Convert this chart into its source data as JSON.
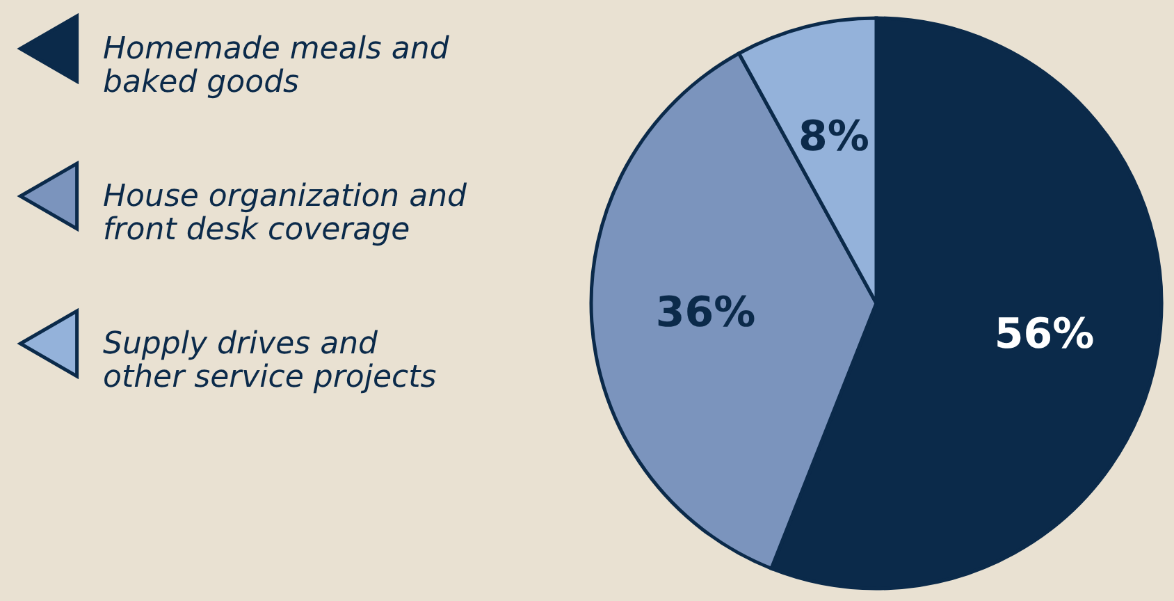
{
  "chart_data": {
    "type": "pie",
    "categories": [
      "Homemade meals and baked goods",
      "House organization and front desk coverage",
      "Supply drives and other service projects"
    ],
    "values": [
      56,
      36,
      8
    ],
    "colors": [
      "#0b2a4a",
      "#7b94bd",
      "#94b2da"
    ],
    "value_labels": [
      "56%",
      "36%",
      "8%"
    ],
    "legend": "left"
  }
}
